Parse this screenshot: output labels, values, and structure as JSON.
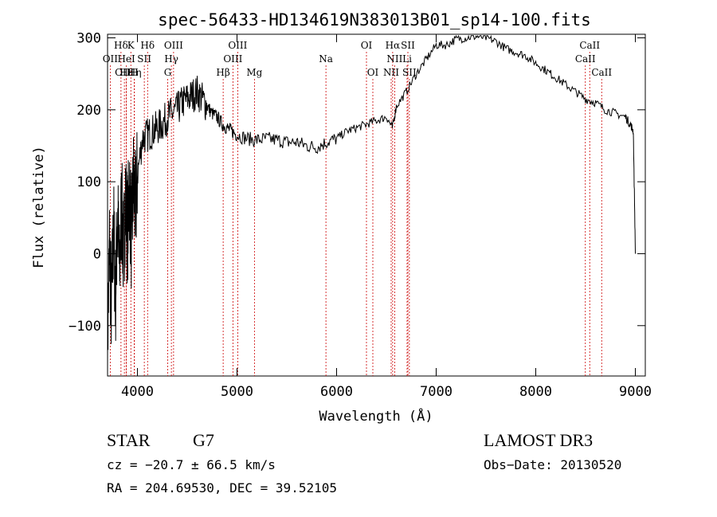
{
  "chart_data": {
    "type": "line",
    "title": "spec-56433-HD134619N383013B01_sp14-100.fits",
    "xlabel": "Wavelength (Å)",
    "ylabel": "Flux (relative)",
    "xlim": [
      3700,
      9100
    ],
    "ylim": [
      -170,
      305
    ],
    "xticks": [
      {
        "value": 4000,
        "label": "4000"
      },
      {
        "value": 5000,
        "label": "5000"
      },
      {
        "value": 6000,
        "label": "6000"
      },
      {
        "value": 7000,
        "label": "7000"
      },
      {
        "value": 8000,
        "label": "8000"
      },
      {
        "value": 9000,
        "label": "9000"
      }
    ],
    "yticks": [
      {
        "value": -100,
        "label": "−100"
      },
      {
        "value": 0,
        "label": "0"
      },
      {
        "value": 100,
        "label": "100"
      },
      {
        "value": 200,
        "label": "200"
      },
      {
        "value": 300,
        "label": "300"
      }
    ],
    "series": [
      {
        "name": "flux",
        "x": [
          3700,
          3720,
          3740,
          3760,
          3780,
          3800,
          3820,
          3840,
          3860,
          3880,
          3900,
          3920,
          3940,
          3960,
          3980,
          4000,
          4050,
          4100,
          4150,
          4200,
          4250,
          4300,
          4350,
          4400,
          4450,
          4500,
          4550,
          4600,
          4650,
          4700,
          4750,
          4800,
          4850,
          4900,
          4950,
          5000,
          5100,
          5200,
          5300,
          5400,
          5500,
          5600,
          5700,
          5800,
          5900,
          6000,
          6100,
          6200,
          6300,
          6400,
          6500,
          6560,
          6600,
          6700,
          6800,
          6900,
          7000,
          7100,
          7200,
          7300,
          7400,
          7500,
          7600,
          7700,
          7800,
          7900,
          8000,
          8100,
          8200,
          8300,
          8400,
          8500,
          8600,
          8700,
          8800,
          8900,
          8950,
          8980,
          9000
        ],
        "y": [
          -120,
          10,
          -80,
          40,
          -60,
          60,
          -30,
          70,
          0,
          80,
          30,
          90,
          20,
          100,
          60,
          110,
          160,
          165,
          170,
          175,
          180,
          190,
          195,
          200,
          210,
          215,
          220,
          225,
          215,
          205,
          195,
          190,
          180,
          175,
          170,
          165,
          160,
          158,
          160,
          158,
          155,
          155,
          150,
          148,
          155,
          160,
          170,
          175,
          180,
          185,
          190,
          175,
          205,
          225,
          250,
          270,
          290,
          290,
          298,
          300,
          302,
          300,
          295,
          285,
          280,
          275,
          265,
          255,
          245,
          235,
          225,
          215,
          210,
          200,
          195,
          190,
          180,
          170,
          0
        ]
      }
    ],
    "lines": [
      {
        "label": "Hδ",
        "wave": 3835,
        "row": 1,
        "label_color": "#000000"
      },
      {
        "label": "OII",
        "wave": 3727,
        "row": 2,
        "label_color": "#000000"
      },
      {
        "label": "OIII",
        "wave": 3869,
        "row": 3,
        "label_color": "#000000"
      },
      {
        "label": "Hε",
        "wave": 3889,
        "row": 3,
        "label_color": "#000000"
      },
      {
        "label": "HeI",
        "wave": 3889,
        "row": 2,
        "label_color": "#000000"
      },
      {
        "label": "K",
        "wave": 3934,
        "row": 1,
        "label_color": "#000000"
      },
      {
        "label": "SII",
        "wave": 4069,
        "row": 2,
        "label_color": "#000000"
      },
      {
        "label": "Hη",
        "wave": 3970,
        "row": 3,
        "label_color": "#000000"
      },
      {
        "label": "H",
        "wave": 3968,
        "row": 3,
        "label_color": "#000000"
      },
      {
        "label": "Hδ",
        "wave": 4102,
        "row": 1,
        "label_color": "#000000"
      },
      {
        "label": "OIII",
        "wave": 4363,
        "row": 1,
        "label_color": "#000000"
      },
      {
        "label": "Hγ",
        "wave": 4341,
        "row": 2,
        "label_color": "#000000"
      },
      {
        "label": "G",
        "wave": 4304,
        "row": 3,
        "label_color": "#000000"
      },
      {
        "label": "Hβ",
        "wave": 4861,
        "row": 3,
        "label_color": "#000000"
      },
      {
        "label": "OIII",
        "wave": 5007,
        "row": 1,
        "label_color": "#000000"
      },
      {
        "label": "OIII",
        "wave": 4959,
        "row": 2,
        "label_color": "#000000"
      },
      {
        "label": "Mg",
        "wave": 5175,
        "row": 3,
        "label_color": "#000000"
      },
      {
        "label": "Na",
        "wave": 5893,
        "row": 2,
        "label_color": "#000000"
      },
      {
        "label": "OI",
        "wave": 6300,
        "row": 1,
        "label_color": "#000000"
      },
      {
        "label": "OI",
        "wave": 6364,
        "row": 3,
        "label_color": "#000000"
      },
      {
        "label": "Hα",
        "wave": 6563,
        "row": 1,
        "label_color": "#000000"
      },
      {
        "label": "SII",
        "wave": 6716,
        "row": 1,
        "label_color": "#000000"
      },
      {
        "label": "NII",
        "wave": 6583,
        "row": 2,
        "label_color": "#000000"
      },
      {
        "label": "Li",
        "wave": 6708,
        "row": 2,
        "label_color": "#000000"
      },
      {
        "label": "NII",
        "wave": 6548,
        "row": 3,
        "label_color": "#000000"
      },
      {
        "label": "SII",
        "wave": 6731,
        "row": 3,
        "label_color": "#000000"
      },
      {
        "label": "CaII",
        "wave": 8542,
        "row": 1,
        "label_color": "#000000"
      },
      {
        "label": "CaII",
        "wave": 8498,
        "row": 2,
        "label_color": "#000000"
      },
      {
        "label": "CaII",
        "wave": 8662,
        "row": 3,
        "label_color": "#000000"
      }
    ],
    "grid": false,
    "colors": {
      "spectrum": "#000000",
      "marker": "#cc0000",
      "axis": "#000000"
    }
  },
  "info": {
    "class_label": "STAR",
    "subclass": "G7",
    "survey": "LAMOST DR3",
    "cz": "cz = −20.7 ± 66.5 km/s",
    "obs_date": "Obs−Date: 20130520",
    "radec": "RA = 204.69530, DEC =  39.52105"
  }
}
